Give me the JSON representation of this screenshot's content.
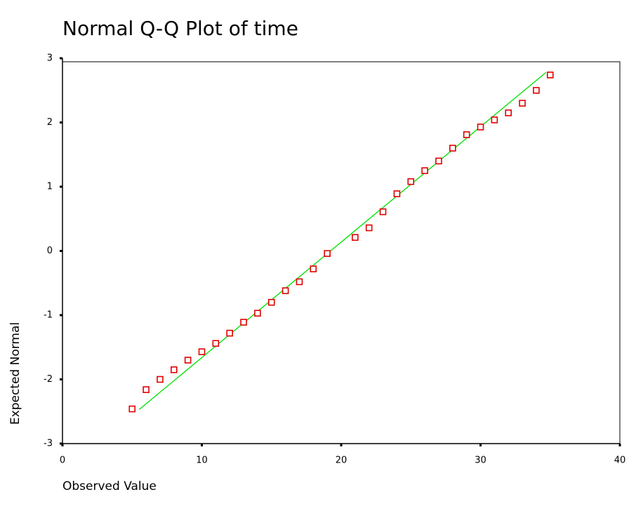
{
  "chart_data": {
    "type": "scatter",
    "title": "Normal Q-Q Plot of time",
    "x_label": "Observed Value",
    "y_label": "Expected Normal",
    "xlim": [
      0,
      40
    ],
    "ylim": [
      -3,
      3
    ],
    "xticks": [
      0,
      10,
      20,
      30,
      40
    ],
    "yticks": [
      -3,
      -2,
      -1,
      0,
      1,
      2,
      3
    ],
    "series": [
      {
        "color": "#e00000",
        "x": [
          5,
          6,
          7,
          8,
          9,
          10,
          11,
          12,
          13,
          14,
          15,
          16,
          17,
          18,
          19,
          21,
          22,
          23,
          24,
          25,
          26,
          27,
          28,
          29,
          30,
          31,
          32,
          33,
          34,
          35
        ],
        "values": [
          -2.46,
          -2.16,
          -2.0,
          -1.85,
          -1.7,
          -1.57,
          -1.44,
          -1.28,
          -1.11,
          -0.97,
          -0.8,
          -0.62,
          -0.48,
          -0.28,
          -0.04,
          0.21,
          0.36,
          0.61,
          0.89,
          1.08,
          1.25,
          1.4,
          1.6,
          1.81,
          1.93,
          2.04,
          2.15,
          2.3,
          2.5,
          2.74
        ]
      }
    ],
    "reference_line": {
      "color": "#00e000",
      "x": [
        5.5,
        34.7
      ],
      "values": [
        -2.47,
        2.78
      ]
    }
  }
}
